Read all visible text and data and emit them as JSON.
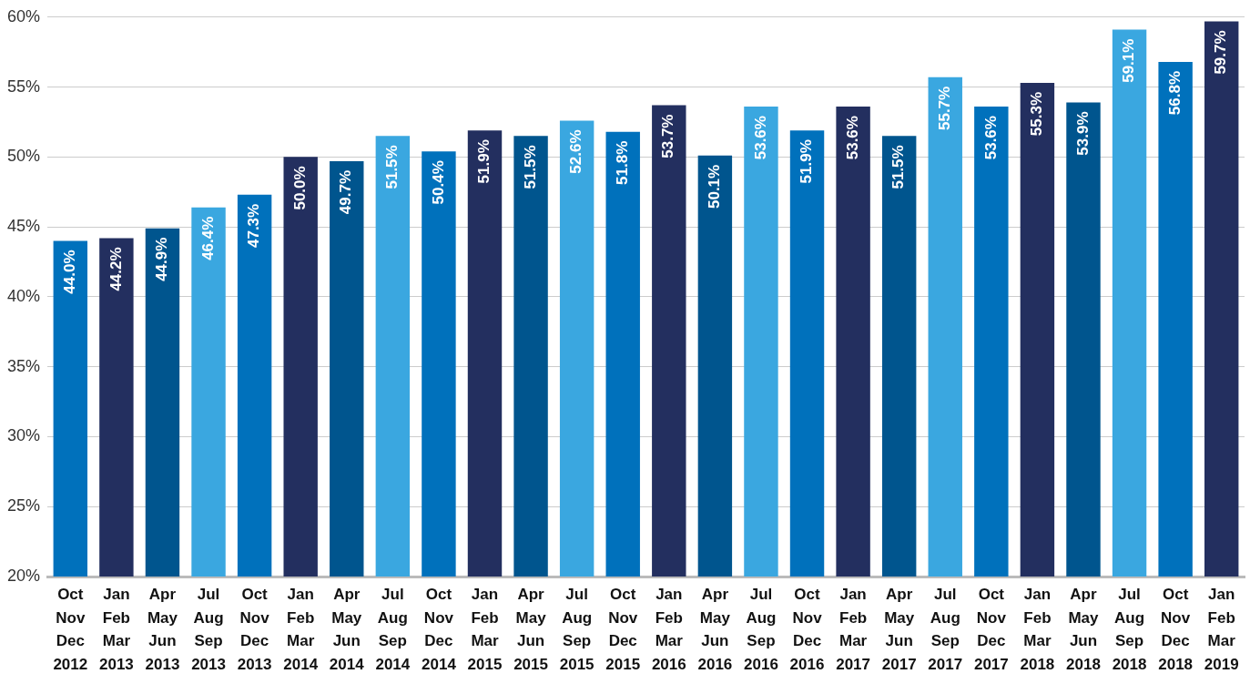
{
  "chart_data": {
    "type": "bar",
    "categories": [
      "Oct\nNov\nDec\n2012",
      "Jan\nFeb\nMar\n2013",
      "Apr\nMay\nJun\n2013",
      "Jul\nAug\nSep\n2013",
      "Oct\nNov\nDec\n2013",
      "Jan\nFeb\nMar\n2014",
      "Apr\nMay\nJun\n2014",
      "Jul\nAug\nSep\n2014",
      "Oct\nNov\nDec\n2014",
      "Jan\nFeb\nMar\n2015",
      "Apr\nMay\nJun\n2015",
      "Jul\nAug\nSep\n2015",
      "Oct\nNov\nDec\n2015",
      "Jan\nFeb\nMar\n2016",
      "Apr\nMay\nJun\n2016",
      "Jul\nAug\nSep\n2016",
      "Oct\nNov\nDec\n2016",
      "Jan\nFeb\nMar\n2017",
      "Apr\nMay\nJun\n2017",
      "Jul\nAug\nSep\n2017",
      "Oct\nNov\nDec\n2017",
      "Jan\nFeb\nMar\n2018",
      "Apr\nMay\nJun\n2018",
      "Jul\nAug\nSep\n2018",
      "Oct\nNov\nDec\n2018",
      "Jan\nFeb\nMar\n2019"
    ],
    "values": [
      44.0,
      44.2,
      44.9,
      46.4,
      47.3,
      50.0,
      49.7,
      51.5,
      50.4,
      51.9,
      51.5,
      52.6,
      51.8,
      53.7,
      50.1,
      53.6,
      51.9,
      53.6,
      51.5,
      55.7,
      53.6,
      55.3,
      53.9,
      59.1,
      56.8,
      59.7
    ],
    "colors": [
      "#0071bc",
      "#232f5f",
      "#00558e",
      "#3aa7e0",
      "#0071bc",
      "#232f5f",
      "#00558e",
      "#3aa7e0",
      "#0071bc",
      "#232f5f",
      "#00558e",
      "#3aa7e0",
      "#0071bc",
      "#232f5f",
      "#00558e",
      "#3aa7e0",
      "#0071bc",
      "#232f5f",
      "#00558e",
      "#3aa7e0",
      "#0071bc",
      "#232f5f",
      "#00558e",
      "#3aa7e0",
      "#0071bc",
      "#232f5f"
    ],
    "ylim": [
      20,
      60
    ],
    "yticks": [
      {
        "value": 20,
        "label": "20%"
      },
      {
        "value": 25,
        "label": "25%"
      },
      {
        "value": 30,
        "label": "30%"
      },
      {
        "value": 35,
        "label": "35%"
      },
      {
        "value": 40,
        "label": "40%"
      },
      {
        "value": 45,
        "label": "45%"
      },
      {
        "value": 50,
        "label": "50%"
      },
      {
        "value": 55,
        "label": "55%"
      },
      {
        "value": 60,
        "label": "60%"
      }
    ],
    "value_labels": [
      "44.0%",
      "44.2%",
      "44.9%",
      "46.4%",
      "47.3%",
      "50.0%",
      "49.7%",
      "51.5%",
      "50.4%",
      "51.9%",
      "51.5%",
      "52.6%",
      "51.8%",
      "53.7%",
      "50.1%",
      "53.6%",
      "51.9%",
      "53.6%",
      "51.5%",
      "55.7%",
      "53.6%",
      "55.3%",
      "53.9%",
      "59.1%",
      "56.8%",
      "59.7%"
    ],
    "grid": "y",
    "legend": false
  }
}
